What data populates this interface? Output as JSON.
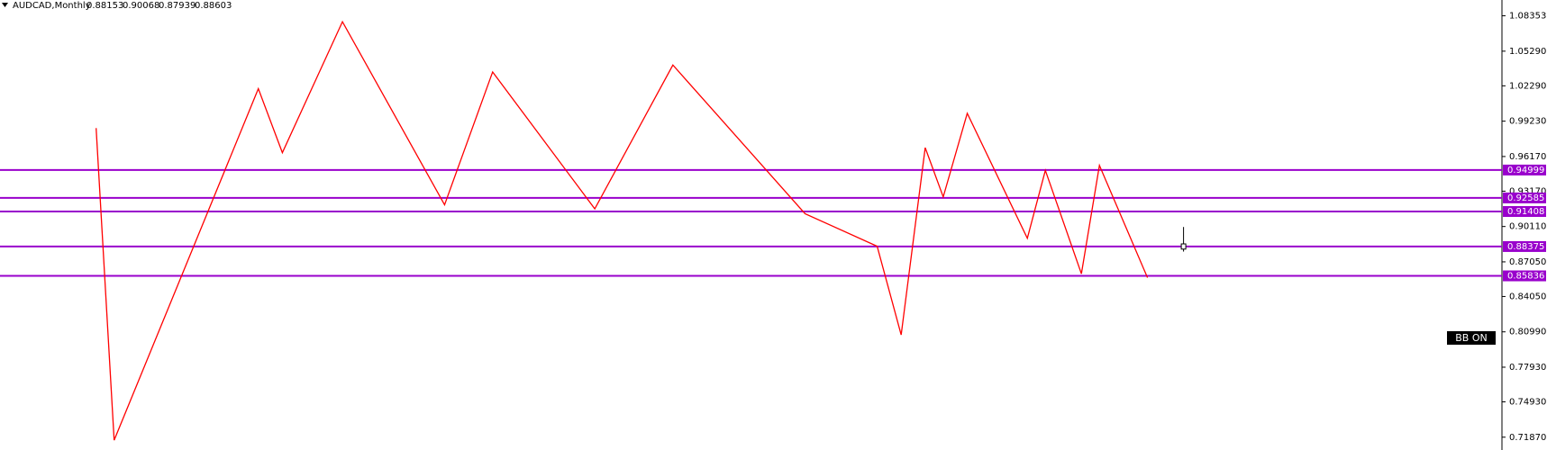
{
  "chart_data": {
    "type": "zigzag",
    "header": {
      "symbol": "AUDCAD,Monthly",
      "ohlc": [
        0.88153,
        0.90068,
        0.87939,
        0.88603
      ]
    },
    "last_bar": 197,
    "xlim": [
      0,
      250
    ],
    "ylim": [
      0.7076,
      1.0972
    ],
    "yticks": [
      {
        "value": 1.08353,
        "label": "1.08353"
      },
      {
        "value": 1.0529,
        "label": "1.05290"
      },
      {
        "value": 1.0229,
        "label": "1.02290"
      },
      {
        "value": 0.9923,
        "label": "0.99230"
      },
      {
        "value": 0.9617,
        "label": "0.96170"
      },
      {
        "value": 0.9317,
        "label": "0.93170"
      },
      {
        "value": 0.9011,
        "label": "0.90110"
      },
      {
        "value": 0.8705,
        "label": "0.87050"
      },
      {
        "value": 0.8405,
        "label": "0.84050"
      },
      {
        "value": 0.8099,
        "label": "0.80990"
      },
      {
        "value": 0.7793,
        "label": "0.77930"
      },
      {
        "value": 0.7493,
        "label": "0.74930"
      },
      {
        "value": 0.7187,
        "label": "0.71870"
      }
    ],
    "levels": [
      {
        "value": 0.94999,
        "label": "0.94999"
      },
      {
        "value": 0.92585,
        "label": "0.92585"
      },
      {
        "value": 0.91408,
        "label": "0.91408"
      },
      {
        "value": 0.88375,
        "label": "0.88375"
      },
      {
        "value": 0.85836,
        "label": "0.85836"
      }
    ],
    "level_color": "#9900cc",
    "zigzag": {
      "color": "#ff0000",
      "x": [
        16,
        19,
        43,
        47,
        57,
        74,
        82,
        99,
        112,
        134,
        146,
        150,
        154,
        157,
        161,
        171,
        174,
        180,
        183,
        191
      ],
      "values": [
        0.9863,
        0.7161,
        1.0204,
        0.965,
        1.0784,
        0.9199,
        1.0349,
        0.9164,
        1.0409,
        0.9122,
        0.884,
        0.8073,
        0.9693,
        0.9267,
        0.9991,
        0.8909,
        0.9497,
        0.8602,
        0.954,
        0.8568
      ]
    },
    "button": "BB ON"
  }
}
